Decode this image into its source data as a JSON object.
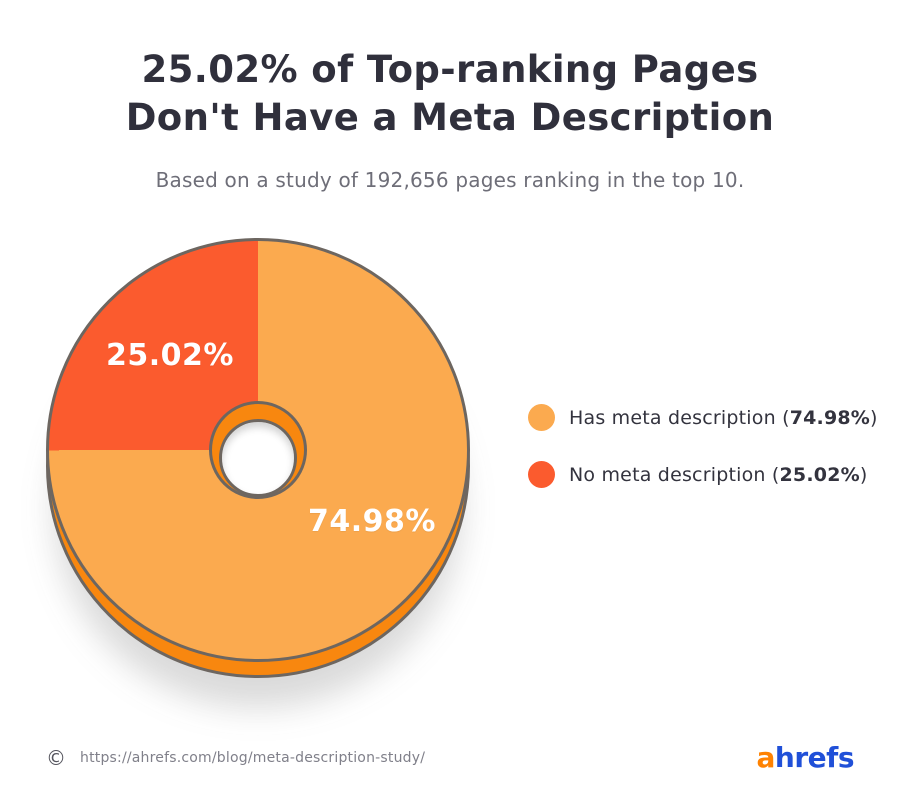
{
  "header": {
    "title_line1": "25.02% of Top-ranking Pages",
    "title_line2": "Don't Have a Meta Description",
    "subtitle": "Based on a study of 192,656 pages ranking in the top 10."
  },
  "chart_data": {
    "type": "pie",
    "donut": true,
    "title": "25.02% of Top-ranking Pages Don't Have a Meta Description",
    "subtitle": "Based on a study of 192,656 pages ranking in the top 10.",
    "legend_position": "right",
    "slices": [
      {
        "label": "Has meta description",
        "value": 74.98,
        "display": "74.98%",
        "color": "#FBAA4F"
      },
      {
        "label": "No meta description",
        "value": 25.02,
        "display": "25.02%",
        "color": "#FB5B2E"
      }
    ],
    "rim_color": "#F8870F",
    "stroke_color": "#6d6660"
  },
  "legend": {
    "items": [
      {
        "text_before": "Has meta description (",
        "value": "74.98%",
        "text_after": ")",
        "color": "#FBAA4F"
      },
      {
        "text_before": "No meta description (",
        "value": "25.02%",
        "text_after": ")",
        "color": "#FB5B2E"
      }
    ]
  },
  "footer": {
    "copyright_symbol": "©",
    "source_url": "https://ahrefs.com/blog/meta-description-study/",
    "logo_part1": "a",
    "logo_part2": "hrefs"
  },
  "colors": {
    "slice_light": "#FBAA4F",
    "slice_dark": "#FB5B2E",
    "rim": "#F8870F",
    "stroke": "#6d6660",
    "logo_orange": "#FF8201",
    "logo_blue": "#2050D8"
  }
}
